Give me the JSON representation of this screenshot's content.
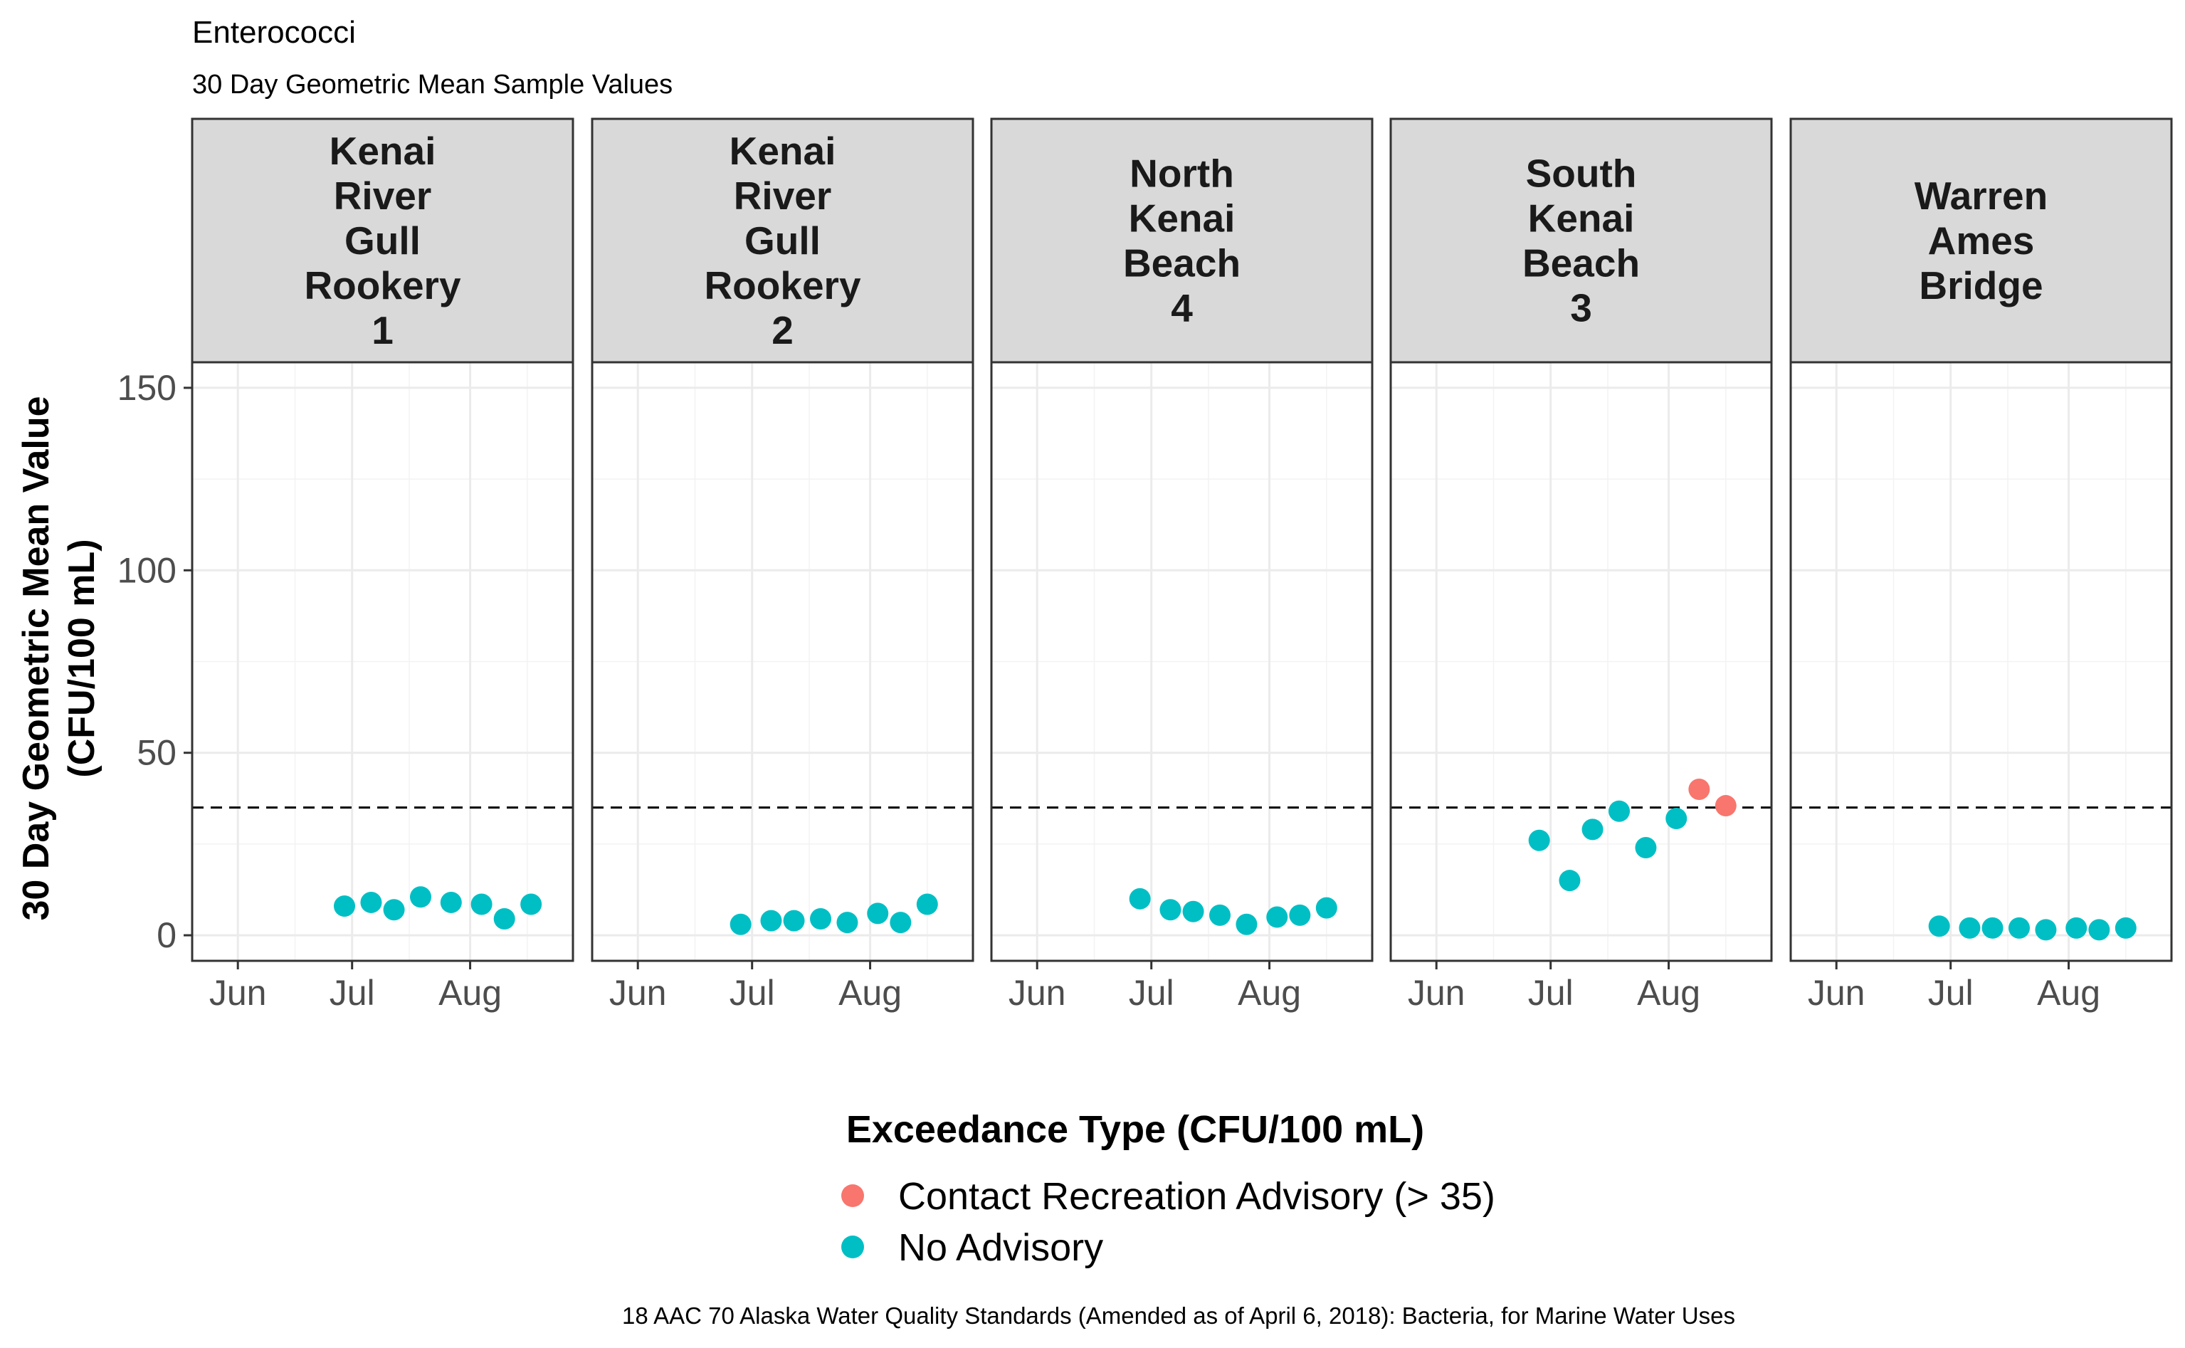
{
  "chart_data": {
    "type": "scatter",
    "title": "Enterococci",
    "subtitle": "30 Day Geometric Mean Sample Values",
    "ylabel_lines": [
      "30 Day Geometric Mean Value",
      "(CFU/100 mL)"
    ],
    "xlabel": "",
    "ylim": [
      -7,
      157
    ],
    "y_ticks": [
      0,
      50,
      100,
      150
    ],
    "y_tick_labels": [
      "0",
      "50",
      "100",
      "150"
    ],
    "x_range": [
      "2021-05-20",
      "2021-08-28"
    ],
    "x_ticks": [
      "2021-06-01",
      "2021-07-01",
      "2021-08-01"
    ],
    "x_tick_labels": [
      "Jun",
      "Jul",
      "Aug"
    ],
    "grid": true,
    "reference_line": {
      "y": 35,
      "style": "dashed"
    },
    "legend": {
      "title": "Exceedance Type (CFU/100 mL)",
      "position": "bottom",
      "entries": [
        {
          "label": "Contact Recreation Advisory (> 35)",
          "color": "#F8766D"
        },
        {
          "label": "No Advisory",
          "color": "#00BFC4"
        }
      ]
    },
    "caption": "18 AAC 70 Alaska Water Quality Standards (Amended as of April 6, 2018): Bacteria, for Marine Water Uses",
    "panels": [
      {
        "strip": [
          "Kenai",
          "River",
          "Gull",
          "Rookery",
          "1"
        ],
        "points": [
          {
            "x": "2021-06-29",
            "y": 8,
            "type": "No Advisory"
          },
          {
            "x": "2021-07-06",
            "y": 9,
            "type": "No Advisory"
          },
          {
            "x": "2021-07-12",
            "y": 7,
            "type": "No Advisory"
          },
          {
            "x": "2021-07-19",
            "y": 10.5,
            "type": "No Advisory"
          },
          {
            "x": "2021-07-27",
            "y": 9,
            "type": "No Advisory"
          },
          {
            "x": "2021-08-04",
            "y": 8.5,
            "type": "No Advisory"
          },
          {
            "x": "2021-08-10",
            "y": 4.5,
            "type": "No Advisory"
          },
          {
            "x": "2021-08-17",
            "y": 8.5,
            "type": "No Advisory"
          }
        ]
      },
      {
        "strip": [
          "Kenai",
          "River",
          "Gull",
          "Rookery",
          "2"
        ],
        "points": [
          {
            "x": "2021-06-28",
            "y": 3,
            "type": "No Advisory"
          },
          {
            "x": "2021-07-06",
            "y": 4,
            "type": "No Advisory"
          },
          {
            "x": "2021-07-12",
            "y": 4,
            "type": "No Advisory"
          },
          {
            "x": "2021-07-19",
            "y": 4.5,
            "type": "No Advisory"
          },
          {
            "x": "2021-07-26",
            "y": 3.5,
            "type": "No Advisory"
          },
          {
            "x": "2021-08-03",
            "y": 6,
            "type": "No Advisory"
          },
          {
            "x": "2021-08-09",
            "y": 3.5,
            "type": "No Advisory"
          },
          {
            "x": "2021-08-16",
            "y": 8.5,
            "type": "No Advisory"
          }
        ]
      },
      {
        "strip": [
          "North",
          "Kenai",
          "Beach",
          "4"
        ],
        "points": [
          {
            "x": "2021-06-28",
            "y": 10,
            "type": "No Advisory"
          },
          {
            "x": "2021-07-06",
            "y": 7,
            "type": "No Advisory"
          },
          {
            "x": "2021-07-12",
            "y": 6.5,
            "type": "No Advisory"
          },
          {
            "x": "2021-07-19",
            "y": 5.5,
            "type": "No Advisory"
          },
          {
            "x": "2021-07-26",
            "y": 3,
            "type": "No Advisory"
          },
          {
            "x": "2021-08-03",
            "y": 5,
            "type": "No Advisory"
          },
          {
            "x": "2021-08-09",
            "y": 5.5,
            "type": "No Advisory"
          },
          {
            "x": "2021-08-16",
            "y": 7.5,
            "type": "No Advisory"
          }
        ]
      },
      {
        "strip": [
          "South",
          "Kenai",
          "Beach",
          "3"
        ],
        "points": [
          {
            "x": "2021-06-28",
            "y": 26,
            "type": "No Advisory"
          },
          {
            "x": "2021-07-06",
            "y": 15,
            "type": "No Advisory"
          },
          {
            "x": "2021-07-12",
            "y": 29,
            "type": "No Advisory"
          },
          {
            "x": "2021-07-19",
            "y": 34,
            "type": "No Advisory"
          },
          {
            "x": "2021-07-26",
            "y": 24,
            "type": "No Advisory"
          },
          {
            "x": "2021-08-03",
            "y": 32,
            "type": "No Advisory"
          },
          {
            "x": "2021-08-09",
            "y": 40,
            "type": "Contact Recreation Advisory (> 35)"
          },
          {
            "x": "2021-08-16",
            "y": 35.5,
            "type": "Contact Recreation Advisory (> 35)"
          }
        ]
      },
      {
        "strip": [
          "Warren",
          "Ames",
          "Bridge"
        ],
        "points": [
          {
            "x": "2021-06-28",
            "y": 2.5,
            "type": "No Advisory"
          },
          {
            "x": "2021-07-06",
            "y": 2,
            "type": "No Advisory"
          },
          {
            "x": "2021-07-12",
            "y": 2,
            "type": "No Advisory"
          },
          {
            "x": "2021-07-19",
            "y": 2,
            "type": "No Advisory"
          },
          {
            "x": "2021-07-26",
            "y": 1.5,
            "type": "No Advisory"
          },
          {
            "x": "2021-08-03",
            "y": 2,
            "type": "No Advisory"
          },
          {
            "x": "2021-08-09",
            "y": 1.5,
            "type": "No Advisory"
          },
          {
            "x": "2021-08-16",
            "y": 2,
            "type": "No Advisory"
          }
        ]
      }
    ]
  }
}
